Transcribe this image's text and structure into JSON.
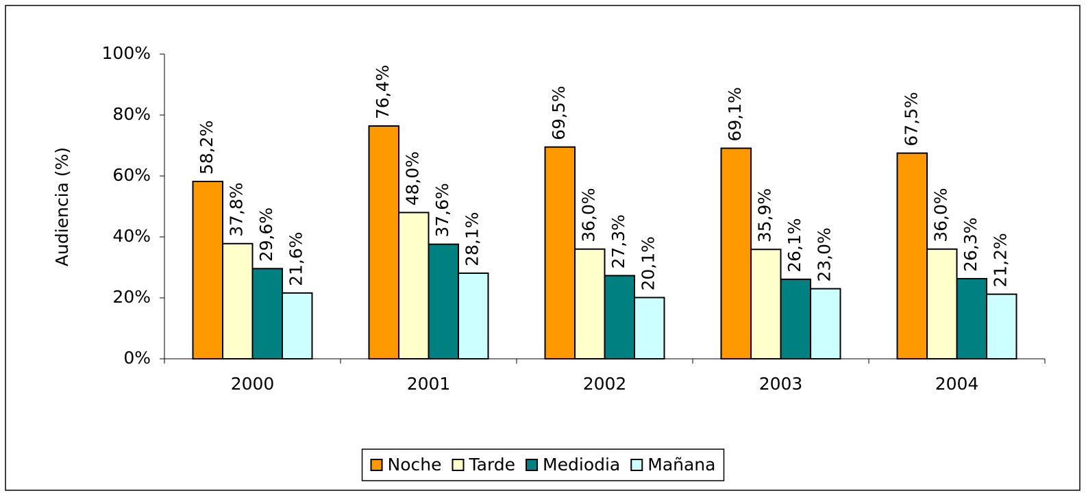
{
  "chart_data": {
    "type": "bar",
    "y_label": "Audiencia (%)",
    "categories": [
      "2000",
      "2001",
      "2002",
      "2003",
      "2004"
    ],
    "series": [
      {
        "name": "Noche",
        "color": "#ff9900",
        "values": [
          58.2,
          76.4,
          69.5,
          69.1,
          67.5
        ],
        "value_labels": [
          "58,2%",
          "76,4%",
          "69,5%",
          "69,1%",
          "67,5%"
        ]
      },
      {
        "name": "Tarde",
        "color": "#ffffcc",
        "values": [
          37.8,
          48.0,
          36.0,
          35.9,
          36.0
        ],
        "value_labels": [
          "37,8%",
          "48,0%",
          "36,0%",
          "35,9%",
          "36,0%"
        ]
      },
      {
        "name": "Mediodia",
        "color": "#008080",
        "values": [
          29.6,
          37.6,
          27.3,
          26.1,
          26.3
        ],
        "value_labels": [
          "29,6%",
          "37,6%",
          "27,3%",
          "26,1%",
          "26,3%"
        ]
      },
      {
        "name": "Mañana",
        "color": "#ccffff",
        "values": [
          21.6,
          28.1,
          20.1,
          23.0,
          21.2
        ],
        "value_labels": [
          "21,6%",
          "28,1%",
          "20,1%",
          "23,0%",
          "21,2%"
        ]
      }
    ],
    "ylim": [
      0,
      100
    ],
    "yticks": [
      {
        "value": 0,
        "label": "0%"
      },
      {
        "value": 20,
        "label": "20%"
      },
      {
        "value": 40,
        "label": "40%"
      },
      {
        "value": 60,
        "label": "60%"
      },
      {
        "value": 80,
        "label": "80%"
      },
      {
        "value": 100,
        "label": "100%"
      }
    ],
    "grid": false,
    "legend": "bottom"
  }
}
